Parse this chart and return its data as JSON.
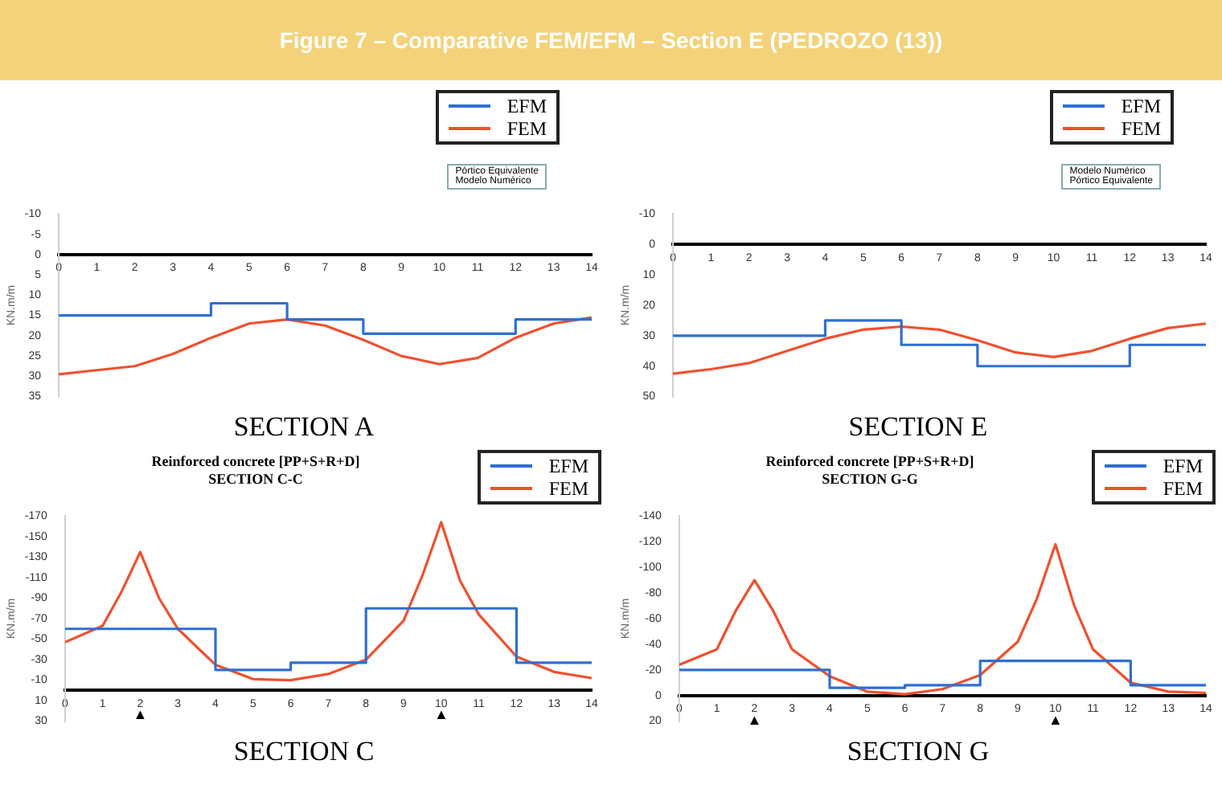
{
  "chart_data": [
    {
      "type": "other",
      "title": "Figure 7 – Comparative FEM/EFM – Section E (PEDROZO (13))"
    },
    {
      "type": "line",
      "xlabel": "SECTION A",
      "ylabel": "KN.m/m",
      "legend": "top right",
      "xlim": [
        0,
        14
      ],
      "xticks": [
        0,
        1,
        2,
        3,
        4,
        5,
        6,
        7,
        8,
        9,
        10,
        11,
        12,
        13,
        14
      ],
      "ylim": [
        35,
        -10
      ],
      "yticks": [
        -10,
        -5,
        0,
        5,
        10,
        15,
        20,
        25,
        30,
        35
      ],
      "annotations": [
        "Pórtico Equivalente",
        "Modelo Numérico"
      ],
      "series": [
        {
          "name": "EFM",
          "type": "step",
          "color": "#2f6fd0",
          "x": [
            0,
            4,
            6,
            8,
            12,
            14
          ],
          "values": [
            15,
            12,
            16,
            19.5,
            16,
            16
          ]
        },
        {
          "name": "FEM",
          "type": "line",
          "color": "#f0502f",
          "x": [
            0,
            1,
            2,
            3,
            4,
            5,
            6,
            7,
            8,
            9,
            10,
            11,
            12,
            13,
            14
          ],
          "values": [
            29.5,
            28.5,
            27.5,
            24.5,
            20.5,
            17,
            16,
            17.5,
            21,
            25,
            27,
            25.5,
            20.5,
            17,
            15.5
          ]
        }
      ]
    },
    {
      "type": "line",
      "xlabel": "SECTION E",
      "ylabel": "KN.m/m",
      "legend": "top right",
      "xlim": [
        0,
        14
      ],
      "xticks": [
        0,
        1,
        2,
        3,
        4,
        5,
        6,
        7,
        8,
        9,
        10,
        11,
        12,
        13,
        14
      ],
      "ylim": [
        50,
        -10
      ],
      "yticks": [
        -10,
        0,
        10,
        20,
        30,
        40,
        50
      ],
      "annotations": [
        "Modelo Numérico",
        "Pórtico Equivalente"
      ],
      "series": [
        {
          "name": "EFM",
          "type": "step",
          "color": "#2f6fd0",
          "x": [
            0,
            4,
            6,
            8,
            12,
            14
          ],
          "values": [
            30,
            25,
            33,
            40,
            33,
            33
          ]
        },
        {
          "name": "FEM",
          "type": "line",
          "color": "#f0502f",
          "x": [
            0,
            1,
            2,
            3,
            4,
            5,
            6,
            7,
            8,
            9,
            10,
            11,
            12,
            13,
            14
          ],
          "values": [
            42.5,
            41,
            39,
            35,
            31,
            28,
            27,
            28,
            31.5,
            35.5,
            37,
            35,
            31,
            27.5,
            26
          ]
        }
      ]
    },
    {
      "type": "line",
      "title": "Reinforced concrete [PP+S+R+D]",
      "subtitle": "SECTION C-C",
      "xlabel": "SECTION C",
      "ylabel": "KN.m/m",
      "legend": "top right",
      "xlim": [
        0,
        14
      ],
      "xticks": [
        0,
        1,
        2,
        3,
        4,
        5,
        6,
        7,
        8,
        9,
        10,
        11,
        12,
        13,
        14
      ],
      "ylim": [
        30,
        -170
      ],
      "yticks": [
        -170,
        -150,
        -130,
        -110,
        -90,
        -70,
        -50,
        -30,
        -10,
        10,
        30
      ],
      "annotations": [
        "▲",
        "▲"
      ],
      "series": [
        {
          "name": "EFM",
          "type": "step",
          "color": "#2f6fd0",
          "x": [
            0,
            4,
            6,
            8,
            12,
            14
          ],
          "values": [
            -60,
            -20,
            -27,
            -80,
            -27,
            -27
          ]
        },
        {
          "name": "FEM",
          "type": "line",
          "color": "#f0502f",
          "x": [
            0,
            1,
            1.5,
            2,
            2.5,
            3,
            4,
            5,
            6,
            7,
            8,
            9,
            9.5,
            10,
            10.5,
            11,
            12,
            13,
            14
          ],
          "values": [
            -47,
            -63,
            -96,
            -135,
            -90,
            -60,
            -25,
            -11,
            -10,
            -16,
            -30,
            -68,
            -112,
            -164,
            -107,
            -74,
            -33,
            -18,
            -12
          ]
        }
      ]
    },
    {
      "type": "line",
      "title": "Reinforced concrete [PP+S+R+D]",
      "subtitle": "SECTION G-G",
      "xlabel": "SECTION G",
      "ylabel": "KN.m/m",
      "legend": "top right",
      "xlim": [
        0,
        14
      ],
      "xticks": [
        0,
        1,
        2,
        3,
        4,
        5,
        6,
        7,
        8,
        9,
        10,
        11,
        12,
        13,
        14
      ],
      "ylim": [
        20,
        -140
      ],
      "yticks": [
        -140,
        -120,
        -100,
        -80,
        -60,
        -40,
        -20,
        0,
        20
      ],
      "annotations": [
        "▲",
        "▲"
      ],
      "series": [
        {
          "name": "EFM",
          "type": "step",
          "color": "#2f6fd0",
          "x": [
            0,
            4,
            6,
            8,
            12,
            14
          ],
          "values": [
            -20,
            -6,
            -8,
            -27,
            -8,
            -8
          ]
        },
        {
          "name": "FEM",
          "type": "line",
          "color": "#f0502f",
          "x": [
            0,
            1,
            1.5,
            2,
            2.5,
            3,
            4,
            5,
            6,
            7,
            8,
            9,
            9.5,
            10,
            10.5,
            11,
            12,
            13,
            14
          ],
          "values": [
            -24,
            -36,
            -66,
            -90,
            -66,
            -36,
            -15,
            -3,
            -1,
            -5,
            -16,
            -42,
            -75,
            -118,
            -70,
            -36,
            -10,
            -3,
            -2
          ]
        }
      ]
    }
  ]
}
